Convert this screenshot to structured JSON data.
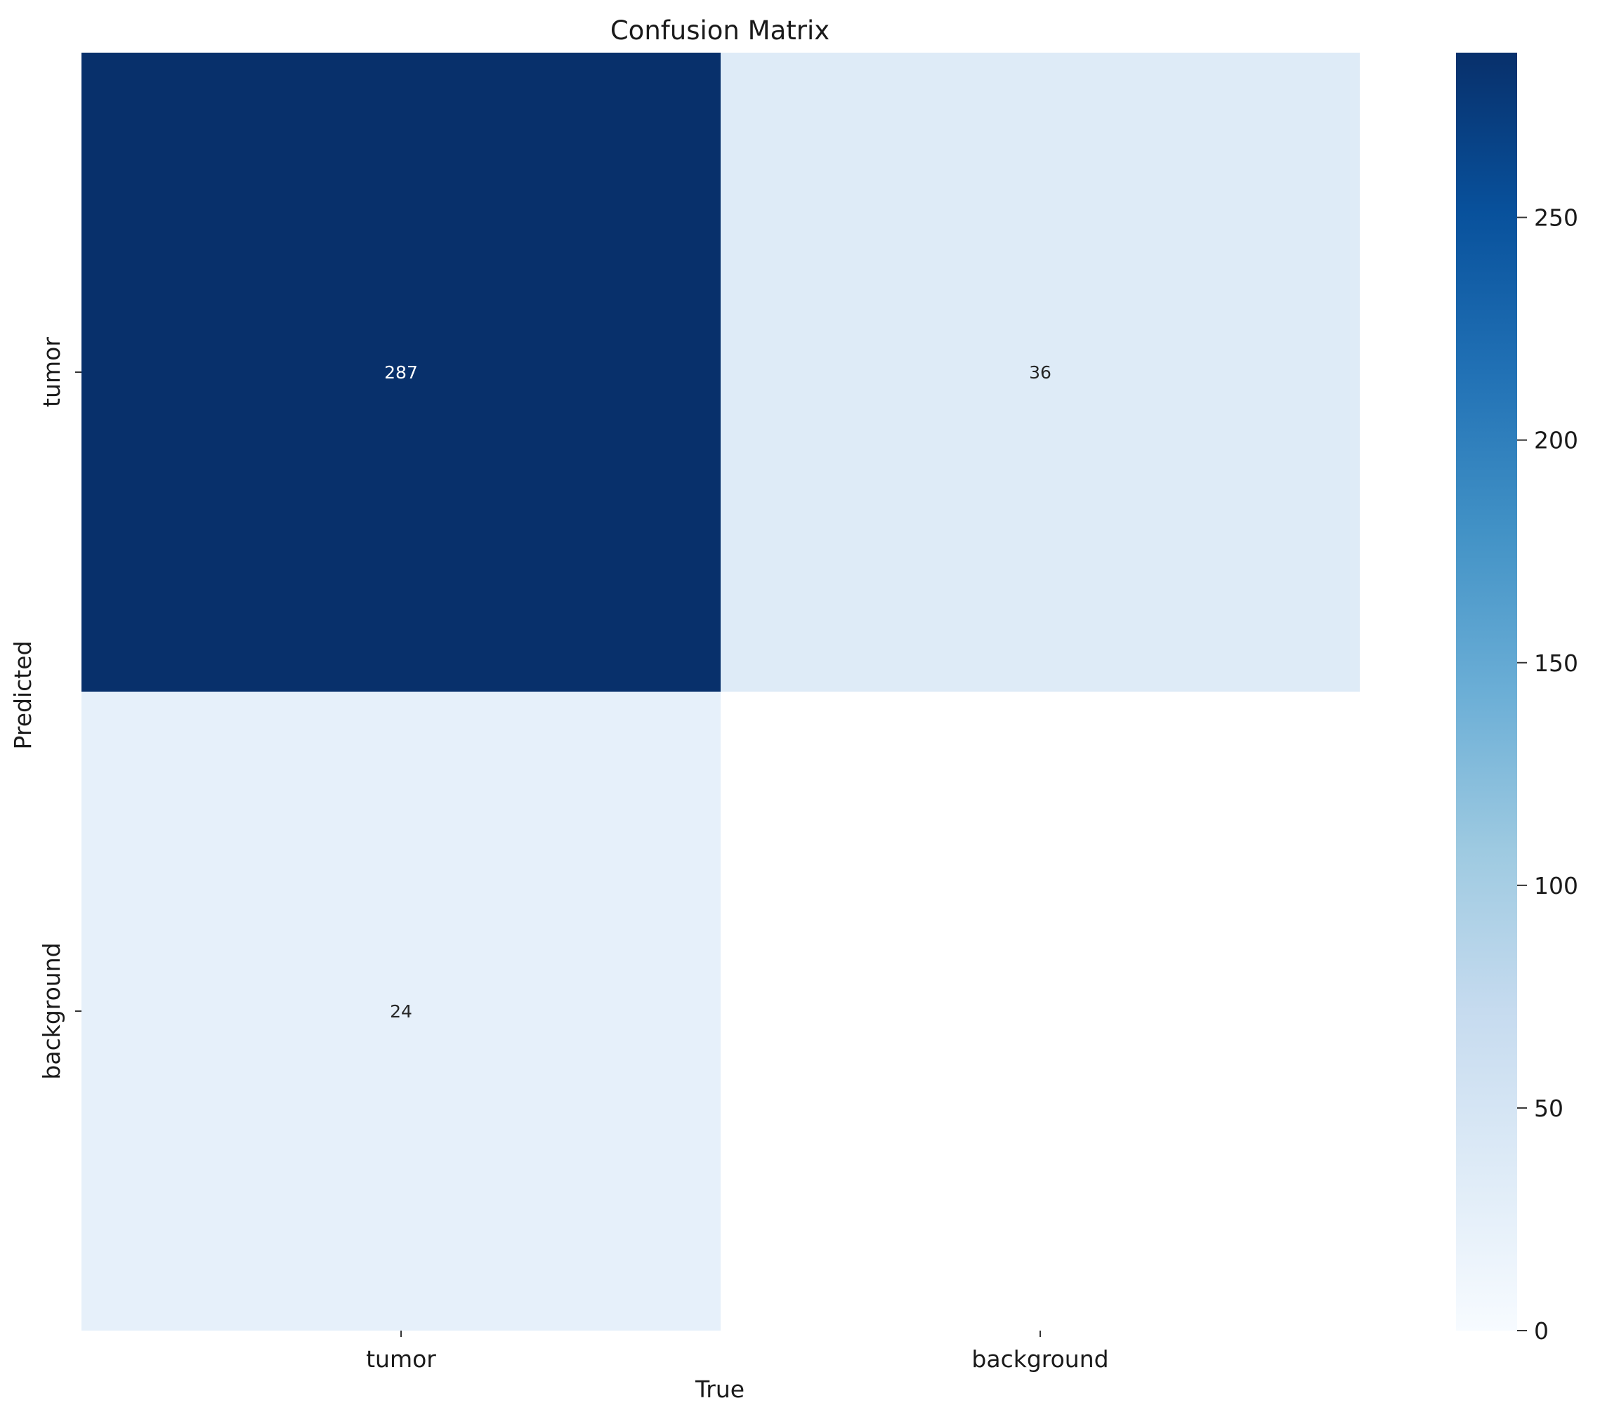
{
  "chart_data": {
    "type": "heatmap",
    "title": "Confusion Matrix",
    "xlabel": "True",
    "ylabel": "Predicted",
    "x_categories": [
      "tumor",
      "background"
    ],
    "y_categories": [
      "tumor",
      "background"
    ],
    "values": [
      [
        287,
        36
      ],
      [
        24,
        null
      ]
    ],
    "colormap": "Blues",
    "colorbar": {
      "min": 0,
      "max": 287,
      "ticks": [
        0,
        50,
        100,
        150,
        200,
        250
      ],
      "tick_labels": [
        "0",
        "50",
        "100",
        "150",
        "200",
        "250"
      ]
    },
    "grid": false,
    "legend": "colorbar-right"
  }
}
